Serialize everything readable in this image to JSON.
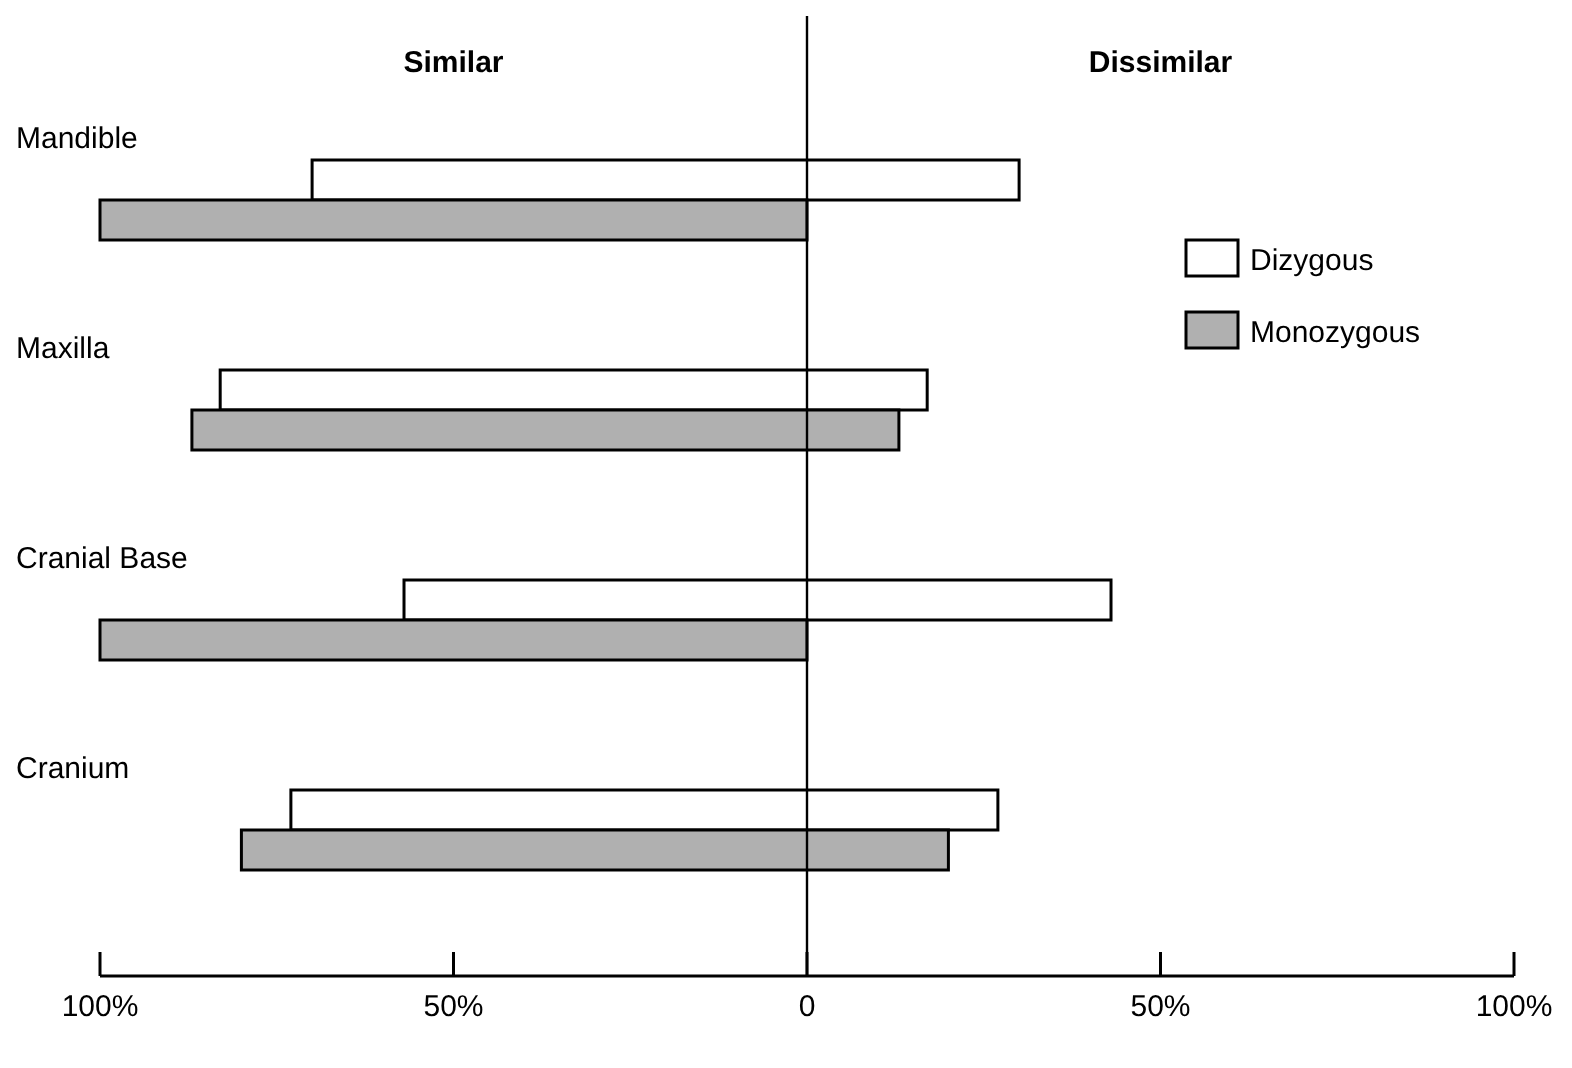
{
  "chart_data": {
    "type": "bar",
    "orientation": "horizontal",
    "categories": [
      "Mandible",
      "Maxilla",
      "Cranial Base",
      "Cranium"
    ],
    "series": [
      {
        "name": "Dizygous",
        "color": "#ffffff",
        "base": [
          -70,
          -83,
          -57,
          -73
        ],
        "values": [
          100,
          100,
          100,
          100
        ]
      },
      {
        "name": "Monozygous",
        "color": "#b0b0b0",
        "base": [
          -100,
          -87,
          -100,
          -80
        ],
        "values": [
          100,
          100,
          100,
          100
        ]
      }
    ],
    "xlim": [
      -100,
      100
    ],
    "xticks": [
      {
        "value": -100,
        "label": "100%"
      },
      {
        "value": -50,
        "label": "50%"
      },
      0,
      {
        "value": 50,
        "label": "50%"
      },
      {
        "value": 100,
        "label": "100%"
      }
    ],
    "ref_lines": [
      {
        "axis": "x",
        "value": 0
      }
    ],
    "annotations": [
      "Similar",
      "Dissimilar"
    ],
    "legend": "top right",
    "grid": false
  }
}
